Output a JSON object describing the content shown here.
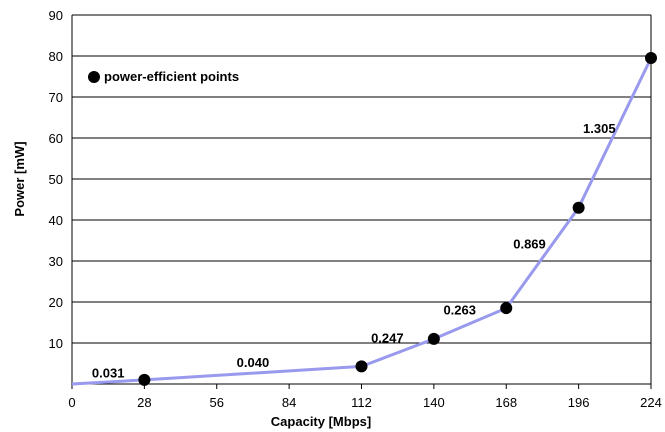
{
  "chart_data": {
    "type": "line",
    "title": "",
    "xlabel": "Capacity [Mbps]",
    "ylabel": "Power [mW]",
    "x_ticks": [
      "0",
      "28",
      "56",
      "84",
      "112",
      "140",
      "168",
      "196",
      "224"
    ],
    "y_ticks": [
      "",
      "10",
      "20",
      "30",
      "40",
      "50",
      "60",
      "70",
      "80",
      "90"
    ],
    "xlim": [
      0,
      224
    ],
    "ylim": [
      0,
      90
    ],
    "grid": "horizontal",
    "legend": {
      "label": "power-efficient points",
      "placement": "top-left"
    },
    "series": [
      {
        "name": "power-efficient points",
        "color": "#9999ee",
        "marker_color": "#000000",
        "x": [
          0,
          28,
          112,
          140,
          168,
          196,
          224
        ],
        "y": [
          0,
          1,
          4.3,
          11,
          18.5,
          43,
          79.5
        ],
        "markers": [
          false,
          true,
          true,
          true,
          true,
          true,
          true
        ]
      }
    ],
    "annotations": [
      {
        "text": "0.031",
        "x": 14,
        "y": 2.8
      },
      {
        "text": "0.040",
        "x": 70,
        "y": 5.4
      },
      {
        "text": "0.247",
        "x": 122,
        "y": 11.3
      },
      {
        "text": "0.263",
        "x": 150,
        "y": 18.2
      },
      {
        "text": "0.869",
        "x": 177,
        "y": 34.3
      },
      {
        "text": "1.305",
        "x": 204,
        "y": 62.4
      }
    ]
  }
}
